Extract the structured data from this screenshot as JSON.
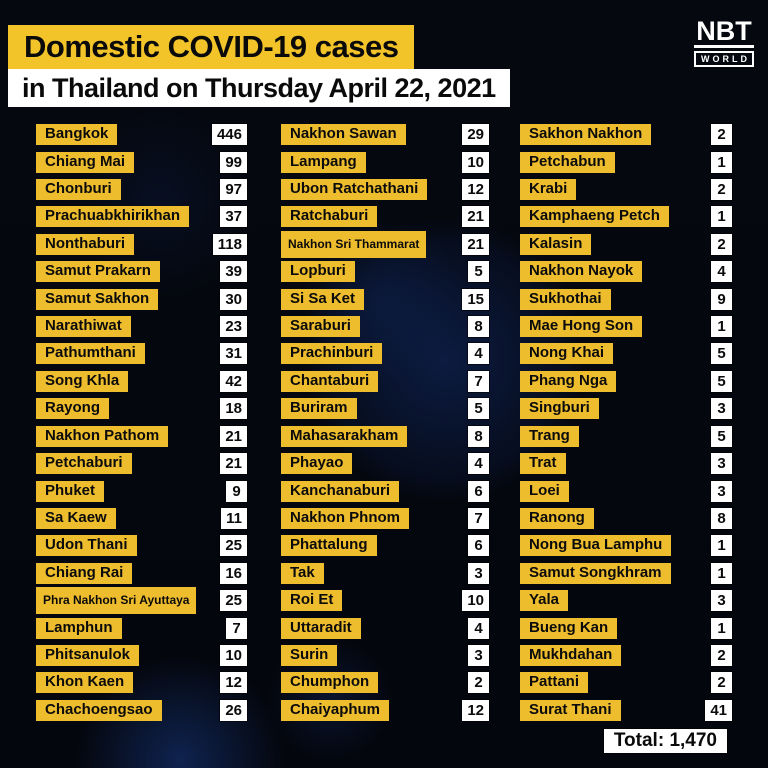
{
  "header": {
    "title": "Domestic COVID-19 cases",
    "subtitle": "in Thailand on Thursday April 22, 2021"
  },
  "logo": {
    "primary": "NBT",
    "secondary": "WORLD"
  },
  "footer": {
    "total_label": "Total: 1,470"
  },
  "colors": {
    "accent_yellow": "#F2C429",
    "chip_yellow": "#EEBD2E",
    "band_white": "#FFFFFF",
    "background_navy": "#04070E",
    "text_black": "#0A0A0A"
  },
  "chart_data": {
    "type": "table",
    "title": "Domestic COVID-19 cases",
    "subtitle": "in Thailand on Thursday April 22, 2021",
    "columns": [
      "Province",
      "Cases"
    ],
    "total": 1470,
    "total_label": "Total: 1,470",
    "groups": [
      [
        {
          "province": "Bangkok",
          "cases": 446
        },
        {
          "province": "Chiang Mai",
          "cases": 99
        },
        {
          "province": "Chonburi",
          "cases": 97
        },
        {
          "province": "Prachuabkhirikhan",
          "cases": 37
        },
        {
          "province": "Nonthaburi",
          "cases": 118
        },
        {
          "province": "Samut Prakarn",
          "cases": 39
        },
        {
          "province": "Samut Sakhon",
          "cases": 30
        },
        {
          "province": "Narathiwat",
          "cases": 23
        },
        {
          "province": "Pathumthani",
          "cases": 31
        },
        {
          "province": "Song Khla",
          "cases": 42
        },
        {
          "province": "Rayong",
          "cases": 18
        },
        {
          "province": "Nakhon Pathom",
          "cases": 21
        },
        {
          "province": "Petchaburi",
          "cases": 21
        },
        {
          "province": "Phuket",
          "cases": 9
        },
        {
          "province": "Sa Kaew",
          "cases": 11
        },
        {
          "province": "Udon Thani",
          "cases": 25
        },
        {
          "province": "Chiang Rai",
          "cases": 16
        },
        {
          "province": "Phra Nakhon Sri Ayuttaya",
          "cases": 25
        },
        {
          "province": "Lamphun",
          "cases": 7
        },
        {
          "province": "Phitsanulok",
          "cases": 10
        },
        {
          "province": "Khon Kaen",
          "cases": 12
        },
        {
          "province": "Chachoengsao",
          "cases": 26
        }
      ],
      [
        {
          "province": "Nakhon Sawan",
          "cases": 29
        },
        {
          "province": "Lampang",
          "cases": 10
        },
        {
          "province": "Ubon Ratchathani",
          "cases": 12
        },
        {
          "province": "Ratchaburi",
          "cases": 21
        },
        {
          "province": "Nakhon Sri Thammarat",
          "cases": 21
        },
        {
          "province": "Lopburi",
          "cases": 5
        },
        {
          "province": "Si Sa Ket",
          "cases": 15
        },
        {
          "province": "Saraburi",
          "cases": 8
        },
        {
          "province": "Prachinburi",
          "cases": 4
        },
        {
          "province": "Chantaburi",
          "cases": 7
        },
        {
          "province": "Buriram",
          "cases": 5
        },
        {
          "province": "Mahasarakham",
          "cases": 8
        },
        {
          "province": "Phayao",
          "cases": 4
        },
        {
          "province": "Kanchanaburi",
          "cases": 6
        },
        {
          "province": "Nakhon Phnom",
          "cases": 7
        },
        {
          "province": "Phattalung",
          "cases": 6
        },
        {
          "province": "Tak",
          "cases": 3
        },
        {
          "province": "Roi Et",
          "cases": 10
        },
        {
          "province": "Uttaradit",
          "cases": 4
        },
        {
          "province": "Surin",
          "cases": 3
        },
        {
          "province": "Chumphon",
          "cases": 2
        },
        {
          "province": "Chaiyaphum",
          "cases": 12
        }
      ],
      [
        {
          "province": "Sakhon Nakhon",
          "cases": 2
        },
        {
          "province": "Petchabun",
          "cases": 1
        },
        {
          "province": "Krabi",
          "cases": 2
        },
        {
          "province": "Kamphaeng Petch",
          "cases": 1
        },
        {
          "province": "Kalasin",
          "cases": 2
        },
        {
          "province": "Nakhon Nayok",
          "cases": 4
        },
        {
          "province": "Sukhothai",
          "cases": 9
        },
        {
          "province": "Mae Hong Son",
          "cases": 1
        },
        {
          "province": "Nong Khai",
          "cases": 5
        },
        {
          "province": "Phang Nga",
          "cases": 5
        },
        {
          "province": "Singburi",
          "cases": 3
        },
        {
          "province": "Trang",
          "cases": 5
        },
        {
          "province": "Trat",
          "cases": 3
        },
        {
          "province": "Loei",
          "cases": 3
        },
        {
          "province": "Ranong",
          "cases": 8
        },
        {
          "province": "Nong Bua Lamphu",
          "cases": 1
        },
        {
          "province": "Samut Songkhram",
          "cases": 1
        },
        {
          "province": "Yala",
          "cases": 3
        },
        {
          "province": "Bueng Kan",
          "cases": 1
        },
        {
          "province": "Mukhdahan",
          "cases": 2
        },
        {
          "province": "Pattani",
          "cases": 2
        },
        {
          "province": "Surat Thani",
          "cases": 41
        }
      ]
    ]
  }
}
